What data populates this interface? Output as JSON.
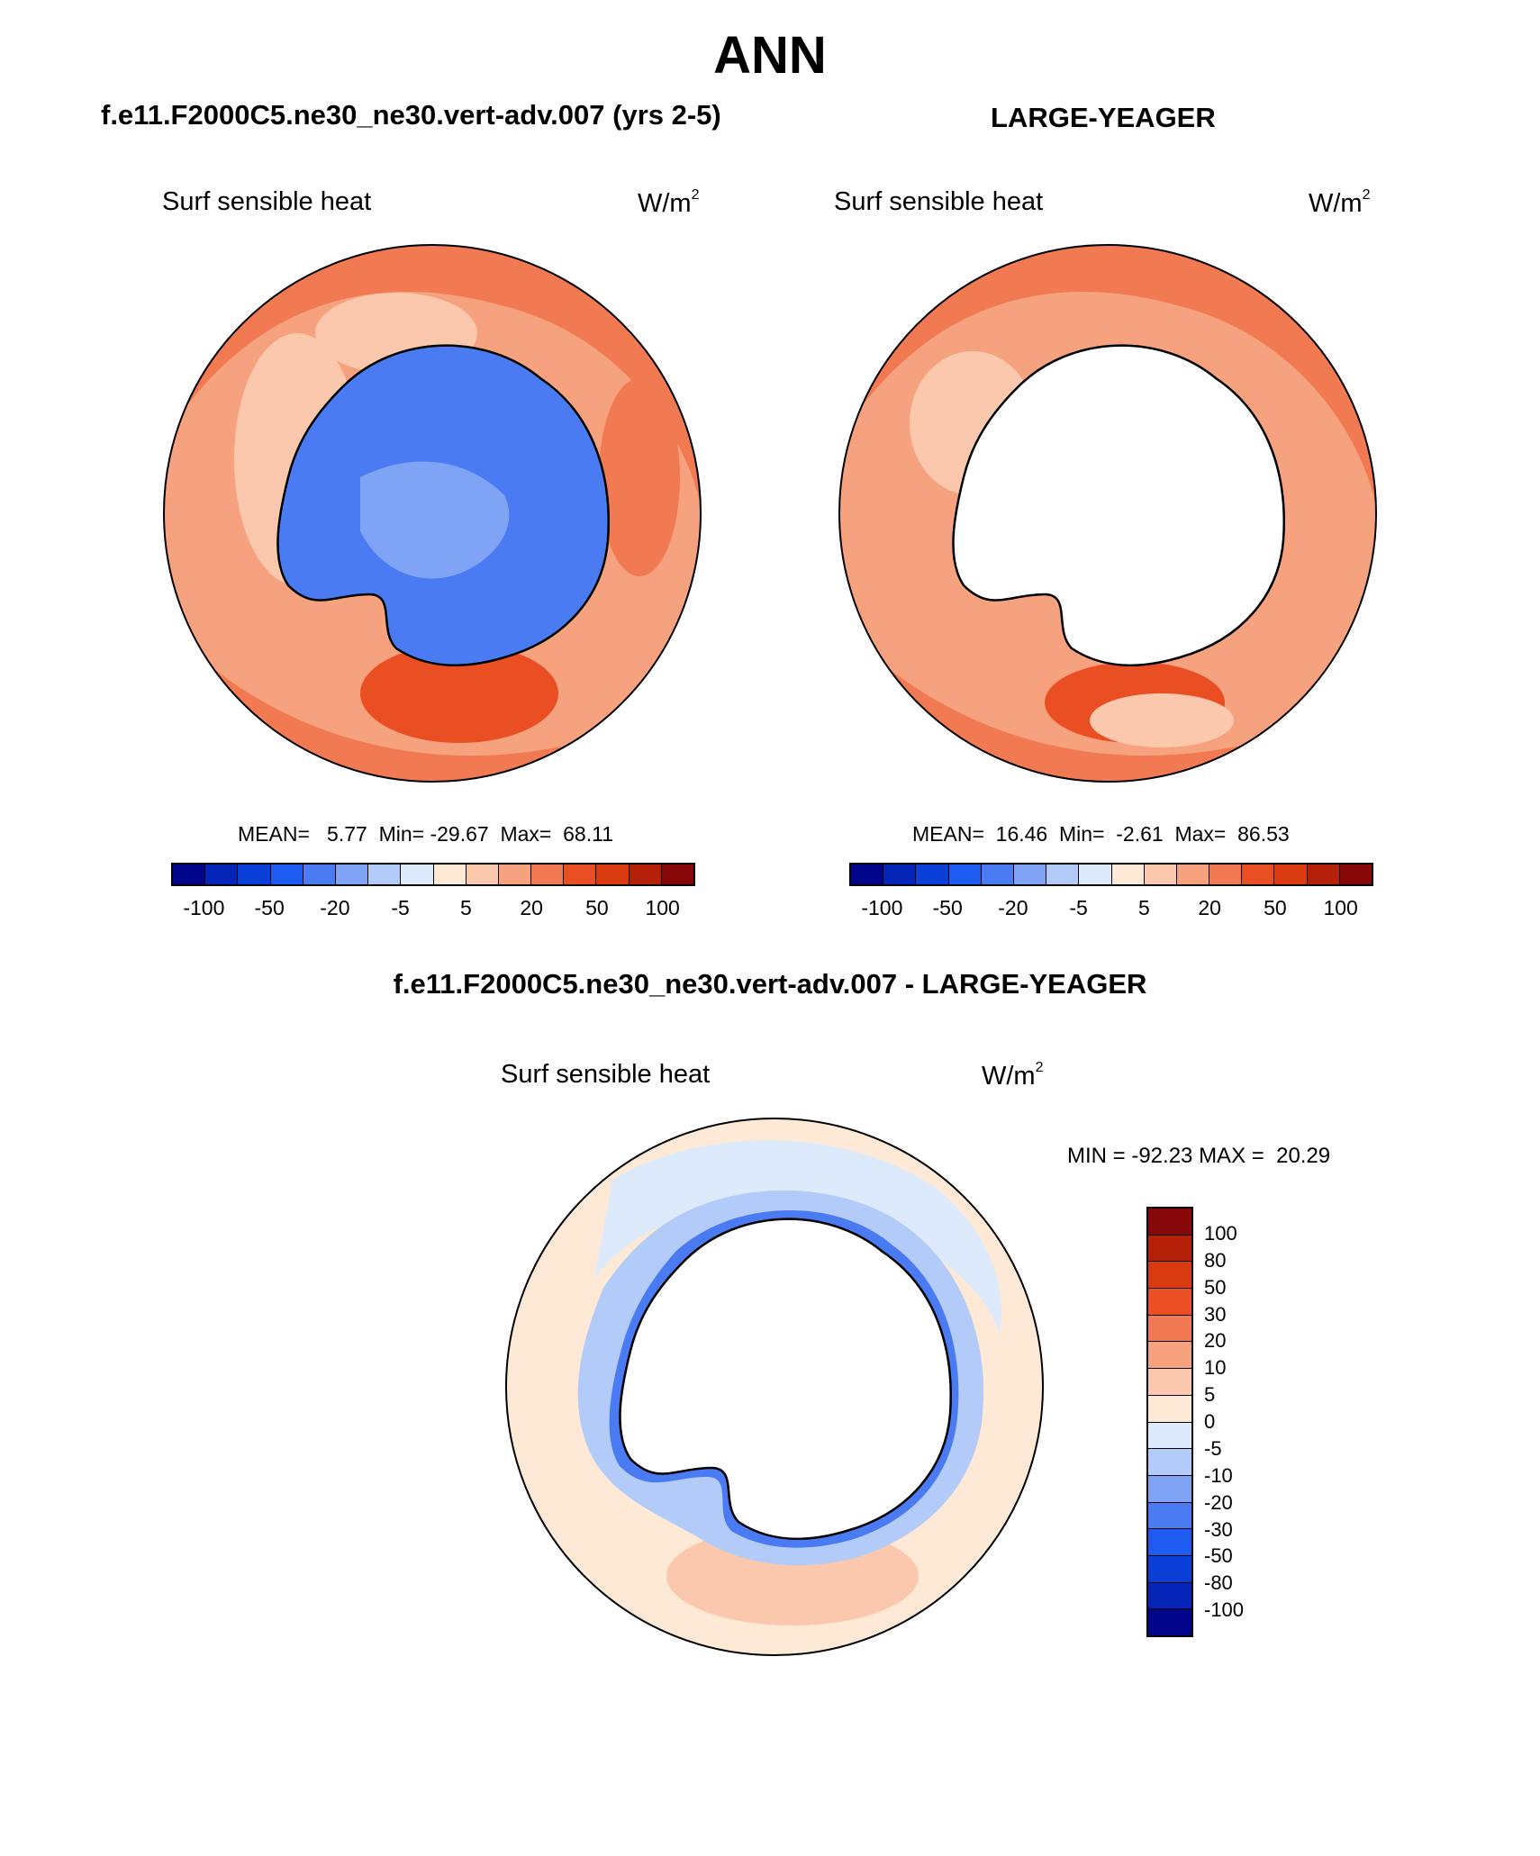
{
  "figure_title": "ANN",
  "panels": {
    "left": {
      "title": "f.e11.F2000C5.ne30_ne30.vert-adv.007 (yrs 2-5)",
      "variable": "Surf sensible heat",
      "units_base": "W/m",
      "units_exp": "2",
      "stats": "MEAN=   5.77  Min= -29.67  Max=  68.11"
    },
    "right": {
      "title": "LARGE-YEAGER",
      "variable": "Surf sensible heat",
      "units_base": "W/m",
      "units_exp": "2",
      "stats": "MEAN=  16.46  Min=  -2.61  Max=  86.53"
    },
    "diff": {
      "title": "f.e11.F2000C5.ne30_ne30.vert-adv.007 - LARGE-YEAGER",
      "variable": "Surf sensible heat",
      "units_base": "W/m",
      "units_exp": "2",
      "stats": "MIN = -92.23 MAX =  20.29"
    }
  },
  "colorbar_main": {
    "labels": [
      "-100",
      "-50",
      "-20",
      "-5",
      "5",
      "20",
      "50",
      "100"
    ],
    "colors": [
      "#00058a",
      "#0524b8",
      "#0a3fd8",
      "#1e5bf0",
      "#4a7bf2",
      "#7fa3f5",
      "#b3cbf8",
      "#ddeafc",
      "#fde9d6",
      "#fbc8ad",
      "#f7a27f",
      "#f27a52",
      "#ea4f24",
      "#d93a10",
      "#b42008",
      "#860808"
    ]
  },
  "colorbar_diff": {
    "labels": [
      "100",
      "80",
      "50",
      "30",
      "20",
      "10",
      "5",
      "0",
      "-5",
      "-10",
      "-20",
      "-30",
      "-50",
      "-80",
      "-100"
    ],
    "colors": [
      "#860808",
      "#b42008",
      "#d93a10",
      "#ea4f24",
      "#f27a52",
      "#f7a27f",
      "#fbc8ad",
      "#fde9d6",
      "#ddeafc",
      "#b3cbf8",
      "#7fa3f5",
      "#4a7bf2",
      "#1e5bf0",
      "#0a3fd8",
      "#0524b8",
      "#00058a"
    ]
  },
  "map_colors": {
    "ocean_left": "#f7a27f",
    "ocean_band_left": "#f27a52",
    "ocean_warm_left": "#ea4f24",
    "ocean_light_left": "#fbc8ad",
    "ice_left": "#4a7bf2",
    "ice_light_left": "#7fa3f5",
    "ocean_right": "#f7a27f",
    "ocean_band_right": "#f27a52",
    "ocean_warm_right": "#ea4f24",
    "ocean_light_right": "#fbc8ad",
    "land_right": "#ffffff",
    "ocean_diff": "#fde9d6",
    "ocean_diff_warm": "#fbc8ad",
    "ocean_diff_cool": "#ddeafc",
    "ring_diff": "#b3cbf8",
    "edge_diff": "#4a7bf2",
    "land_diff": "#ffffff"
  }
}
